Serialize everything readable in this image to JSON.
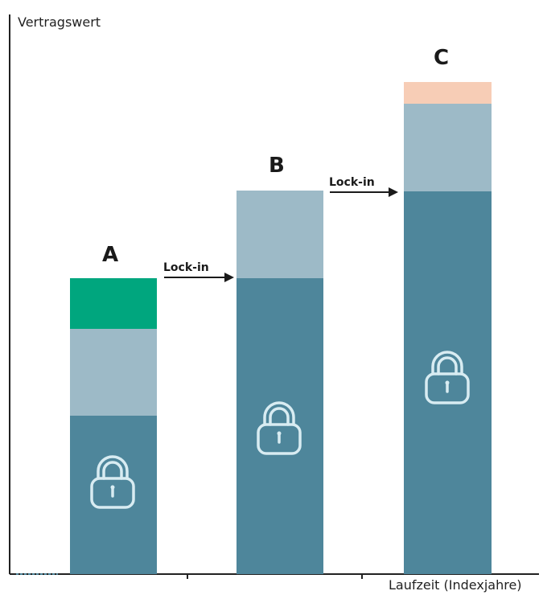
{
  "axes": {
    "y_label": "Vertragswert",
    "x_label": "Laufzeit (Indexjahre)"
  },
  "colors": {
    "locked_base": "#4e869b",
    "middle_layer": "#9dbac7",
    "a_top": "#00a67e",
    "c_top": "#f7cdb6",
    "lock_icon": "#d8ecf2",
    "axis": "#222222"
  },
  "bars": [
    {
      "label": "A",
      "layers": [
        "locked_base",
        "middle_layer",
        "a_top"
      ]
    },
    {
      "label": "B",
      "layers": [
        "locked_base",
        "middle_layer"
      ]
    },
    {
      "label": "C",
      "layers": [
        "locked_base",
        "middle_layer",
        "c_top"
      ]
    }
  ],
  "arrows": [
    {
      "label": "Lock-in",
      "from": "A",
      "to": "B"
    },
    {
      "label": "Lock-in",
      "from": "B",
      "to": "C"
    }
  ],
  "icons": {
    "lock": "padlock-icon"
  }
}
